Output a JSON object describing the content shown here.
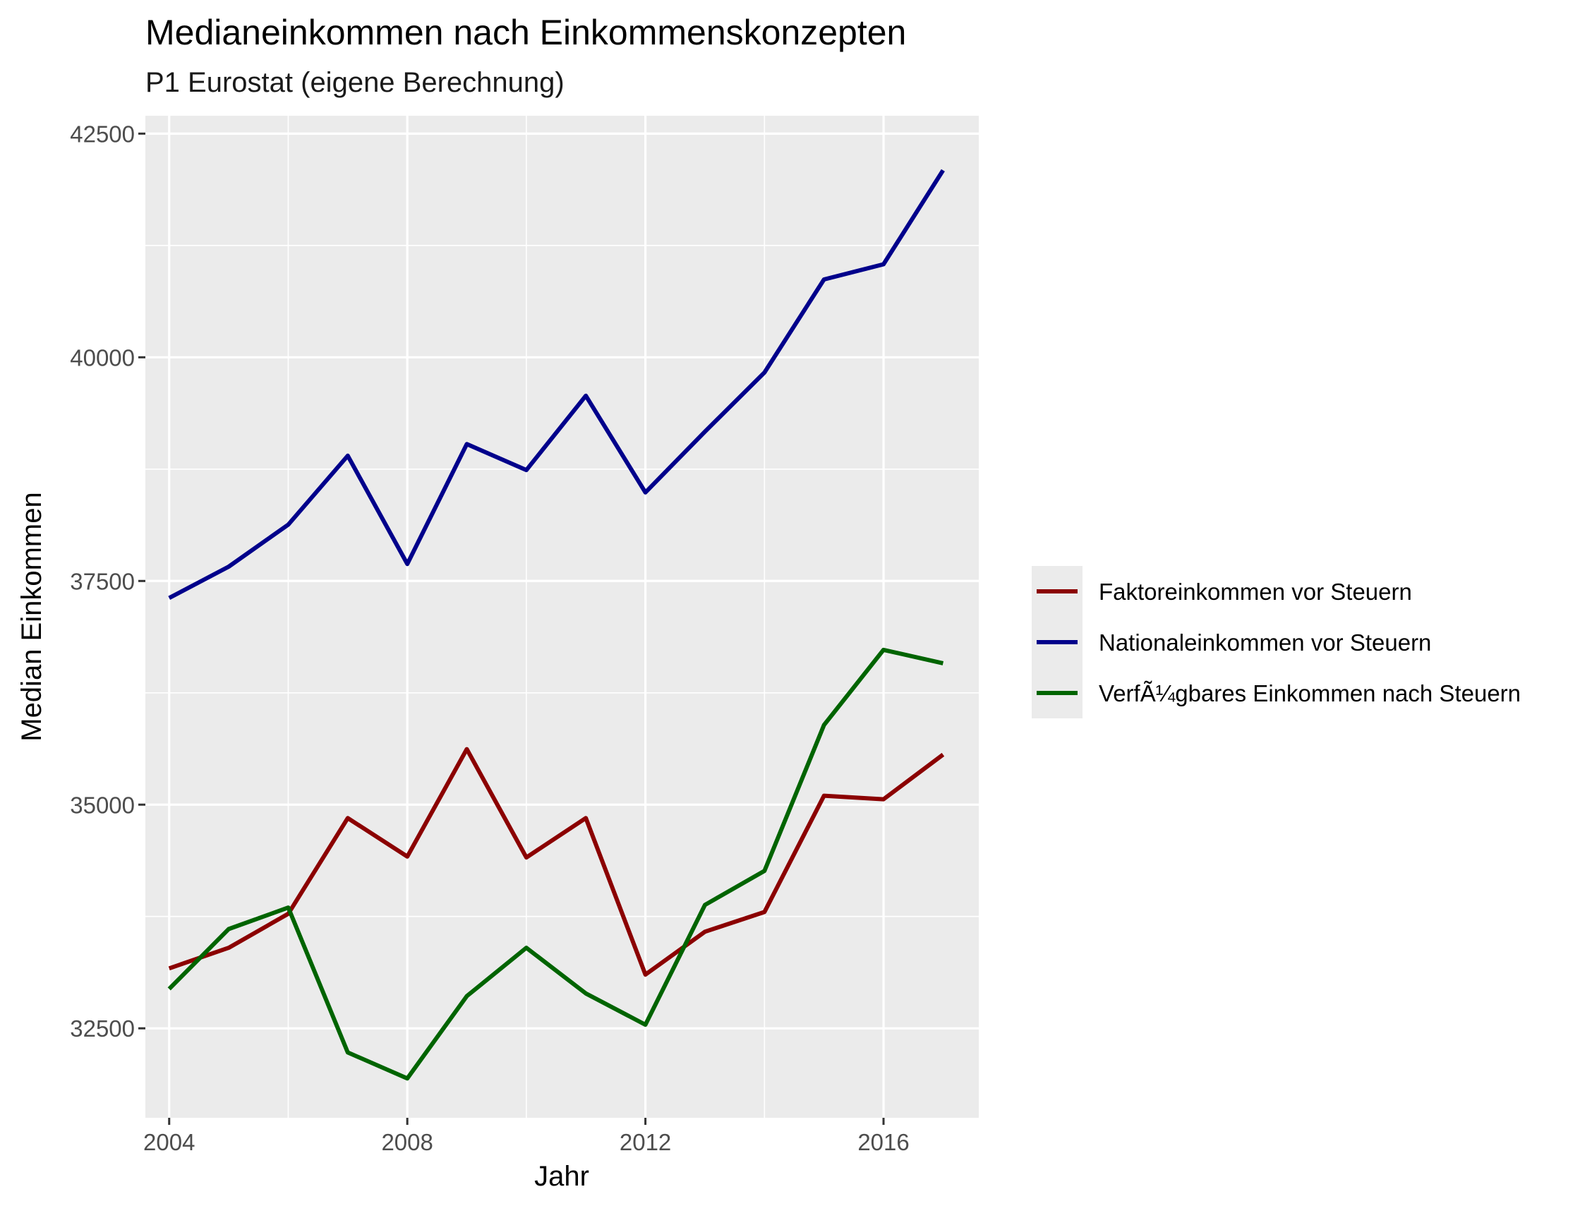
{
  "chart_data": {
    "type": "line",
    "title": "Medianeinkommen nach Einkommenskonzepten",
    "subtitle": "P1 Eurostat (eigene Berechnung)",
    "xlabel": "Jahr",
    "ylabel": "Median Einkommen",
    "xlim": [
      2003.6,
      2017.6
    ],
    "ylim": [
      31500,
      42700
    ],
    "x_ticks": [
      2004,
      2008,
      2012,
      2016
    ],
    "y_ticks": [
      32500,
      35000,
      37500,
      40000,
      42500
    ],
    "x_tick_labels": [
      "2004",
      "2008",
      "2012",
      "2016"
    ],
    "y_tick_labels": [
      "32500",
      "35000",
      "37500",
      "40000",
      "42500"
    ],
    "grid": true,
    "legend_position": "right",
    "x": [
      2004,
      2005,
      2006,
      2007,
      2008,
      2009,
      2010,
      2011,
      2012,
      2013,
      2014,
      2015,
      2016,
      2017
    ],
    "series": [
      {
        "name": "Faktoreinkommen vor Steuern",
        "color": "#8b0000",
        "values": [
          33170,
          33400,
          33780,
          34850,
          34420,
          35620,
          34410,
          34850,
          33100,
          33580,
          33800,
          35100,
          35060,
          35560
        ]
      },
      {
        "name": "Nationaleinkommen vor Steuern",
        "color": "#00008b",
        "values": [
          37310,
          37660,
          38130,
          38900,
          37690,
          39030,
          38740,
          39570,
          38490,
          39170,
          39830,
          40870,
          41040,
          42090
        ]
      },
      {
        "name": "VerfÃ¼gbares Einkommen nach Steuern",
        "color": "#006400",
        "values": [
          32940,
          33610,
          33850,
          32230,
          31940,
          32860,
          33400,
          32890,
          32540,
          33880,
          34260,
          35890,
          36730,
          36580
        ]
      }
    ]
  }
}
